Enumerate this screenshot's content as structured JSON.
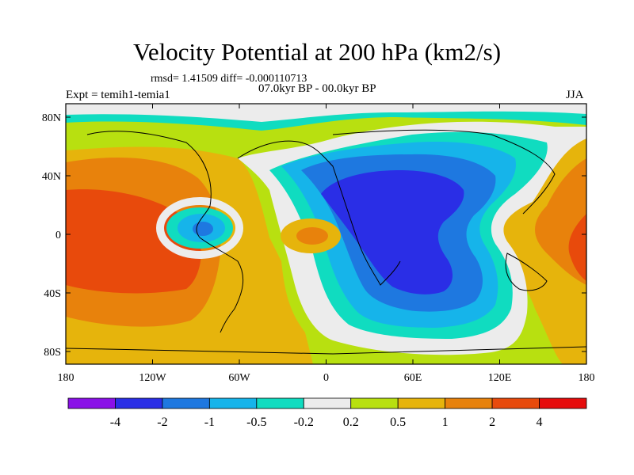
{
  "title": "Velocity Potential at 200 hPa (km2/s)",
  "stats": "rmsd= 1.41509 diff= -0.000110713",
  "period": "07.0kyr BP - 00.0kyr BP",
  "experiment": "Expt = temih1-temia1",
  "season": "JJA",
  "lon_labels": [
    "180",
    "120W",
    "60W",
    "0",
    "60E",
    "120E",
    "180"
  ],
  "lat_labels": [
    "80N",
    "40N",
    "0",
    "40S",
    "80S"
  ],
  "colorbar": {
    "colors": [
      "#8a10e8",
      "#2a2ee6",
      "#1e78e0",
      "#16b4ea",
      "#10dcc0",
      "#ececec",
      "#b8e010",
      "#e6b40c",
      "#e8820c",
      "#e84a0c",
      "#e60c0c"
    ],
    "labels": [
      "-4",
      "-2",
      "-1",
      "-0.5",
      "-0.2",
      "0.2",
      "0.5",
      "1",
      "2",
      "4"
    ]
  }
}
